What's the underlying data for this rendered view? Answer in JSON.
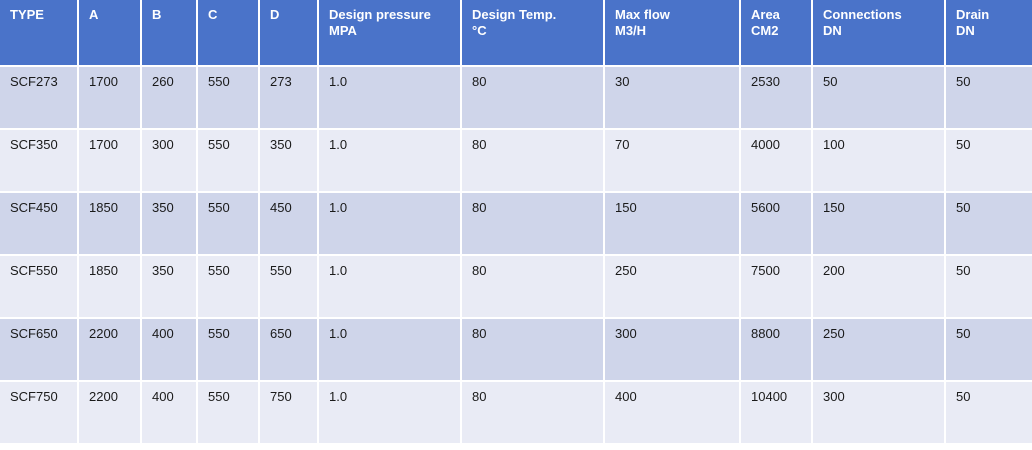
{
  "table": {
    "headers": [
      {
        "line1": "TYPE",
        "line2": ""
      },
      {
        "line1": "A",
        "line2": ""
      },
      {
        "line1": "B",
        "line2": ""
      },
      {
        "line1": "C",
        "line2": ""
      },
      {
        "line1": "D",
        "line2": ""
      },
      {
        "line1": "Design pressure",
        "line2": "MPA"
      },
      {
        "line1": "Design Temp.",
        "line2": "°C"
      },
      {
        "line1": "Max flow",
        "line2": "M3/H"
      },
      {
        "line1": "Area",
        "line2": "CM2"
      },
      {
        "line1": "Connections",
        "line2": "DN"
      },
      {
        "line1": "Drain",
        "line2": "DN"
      }
    ],
    "rows": [
      [
        "SCF273",
        "1700",
        "260",
        "550",
        "273",
        "1.0",
        "80",
        "30",
        "2530",
        "50",
        "50"
      ],
      [
        "SCF350",
        "1700",
        "300",
        "550",
        "350",
        "1.0",
        "80",
        "70",
        "4000",
        "100",
        "50"
      ],
      [
        "SCF450",
        "1850",
        "350",
        "550",
        "450",
        "1.0",
        "80",
        "150",
        "5600",
        "150",
        "50"
      ],
      [
        "SCF550",
        "1850",
        "350",
        "550",
        "550",
        "1.0",
        "80",
        "250",
        "7500",
        "200",
        "50"
      ],
      [
        "SCF650",
        "2200",
        "400",
        "550",
        "650",
        "1.0",
        "80",
        "300",
        "8800",
        "250",
        "50"
      ],
      [
        "SCF750",
        "2200",
        "400",
        "550",
        "750",
        "1.0",
        "80",
        "400",
        "10400",
        "300",
        "50"
      ]
    ]
  },
  "colors": {
    "header_bg": "#4a73c9",
    "row_dark": "#cfd5ea",
    "row_light": "#e9ebf5"
  }
}
